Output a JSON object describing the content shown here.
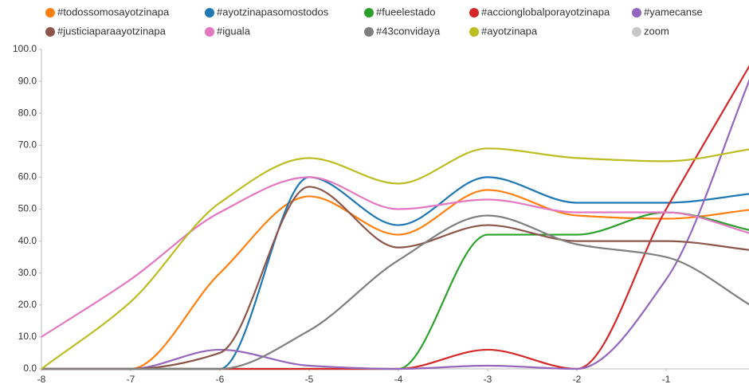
{
  "chart_data": {
    "type": "line",
    "x": [
      -8,
      -7,
      -6,
      -5,
      -4,
      -3,
      -2,
      -1,
      0
    ],
    "xlim": [
      -8,
      0
    ],
    "xticks": [
      -8,
      -7,
      -6,
      -5,
      -4,
      -3,
      -2,
      -1
    ],
    "ylim": [
      0,
      100
    ],
    "yticks": [
      {
        "value": 0,
        "label": "0.0"
      },
      {
        "value": 10,
        "label": "10.0"
      },
      {
        "value": 20,
        "label": "20.0"
      },
      {
        "value": 30,
        "label": "30.0"
      },
      {
        "value": 40,
        "label": "40.0"
      },
      {
        "value": 50,
        "label": "50.0"
      },
      {
        "value": 60,
        "label": "60.0"
      },
      {
        "value": 70,
        "label": "70.0"
      },
      {
        "value": 80,
        "label": "80.0"
      },
      {
        "value": 90,
        "label": "90.0"
      },
      {
        "value": 100,
        "label": "100.0"
      }
    ],
    "series": [
      {
        "name": "#todossomosayotzinapa",
        "color": "#ff7f0e",
        "values": [
          0,
          0,
          30,
          54,
          42,
          56,
          48,
          47,
          50
        ]
      },
      {
        "name": "#ayotzinapasomostodos",
        "color": "#1f77b4",
        "values": [
          0,
          0,
          0,
          60,
          45,
          60,
          52,
          52,
          55
        ]
      },
      {
        "name": "#fueelestado",
        "color": "#2ca02c",
        "values": [
          0,
          0,
          0,
          0,
          0,
          42,
          42,
          49,
          43
        ]
      },
      {
        "name": "#accionglobalporayotzinapa",
        "color": "#d62728",
        "values": [
          0,
          0,
          0,
          0,
          0,
          6,
          0,
          50,
          98
        ]
      },
      {
        "name": "#yamecanse",
        "color": "#9467bd",
        "values": [
          0,
          0,
          6,
          1,
          0,
          1,
          0,
          28,
          95
        ]
      },
      {
        "name": "#justiciaparaayotzinapa",
        "color": "#8c564b",
        "values": [
          0,
          0,
          5,
          57,
          38,
          45,
          40,
          40,
          37
        ]
      },
      {
        "name": "#iguala",
        "color": "#e377c2",
        "values": [
          10,
          28,
          49,
          60,
          50,
          53,
          49,
          49,
          42
        ]
      },
      {
        "name": "#43convidaya",
        "color": "#7f7f7f",
        "values": [
          0,
          0,
          0,
          12,
          34,
          48,
          39,
          35,
          19
        ]
      },
      {
        "name": "#ayotzinapa",
        "color": "#bcbd22",
        "values": [
          0,
          21,
          52,
          66,
          58,
          69,
          66,
          65,
          69
        ]
      }
    ],
    "legend_only": [
      {
        "name": "zoom",
        "color": "#c7c7c7"
      }
    ]
  }
}
